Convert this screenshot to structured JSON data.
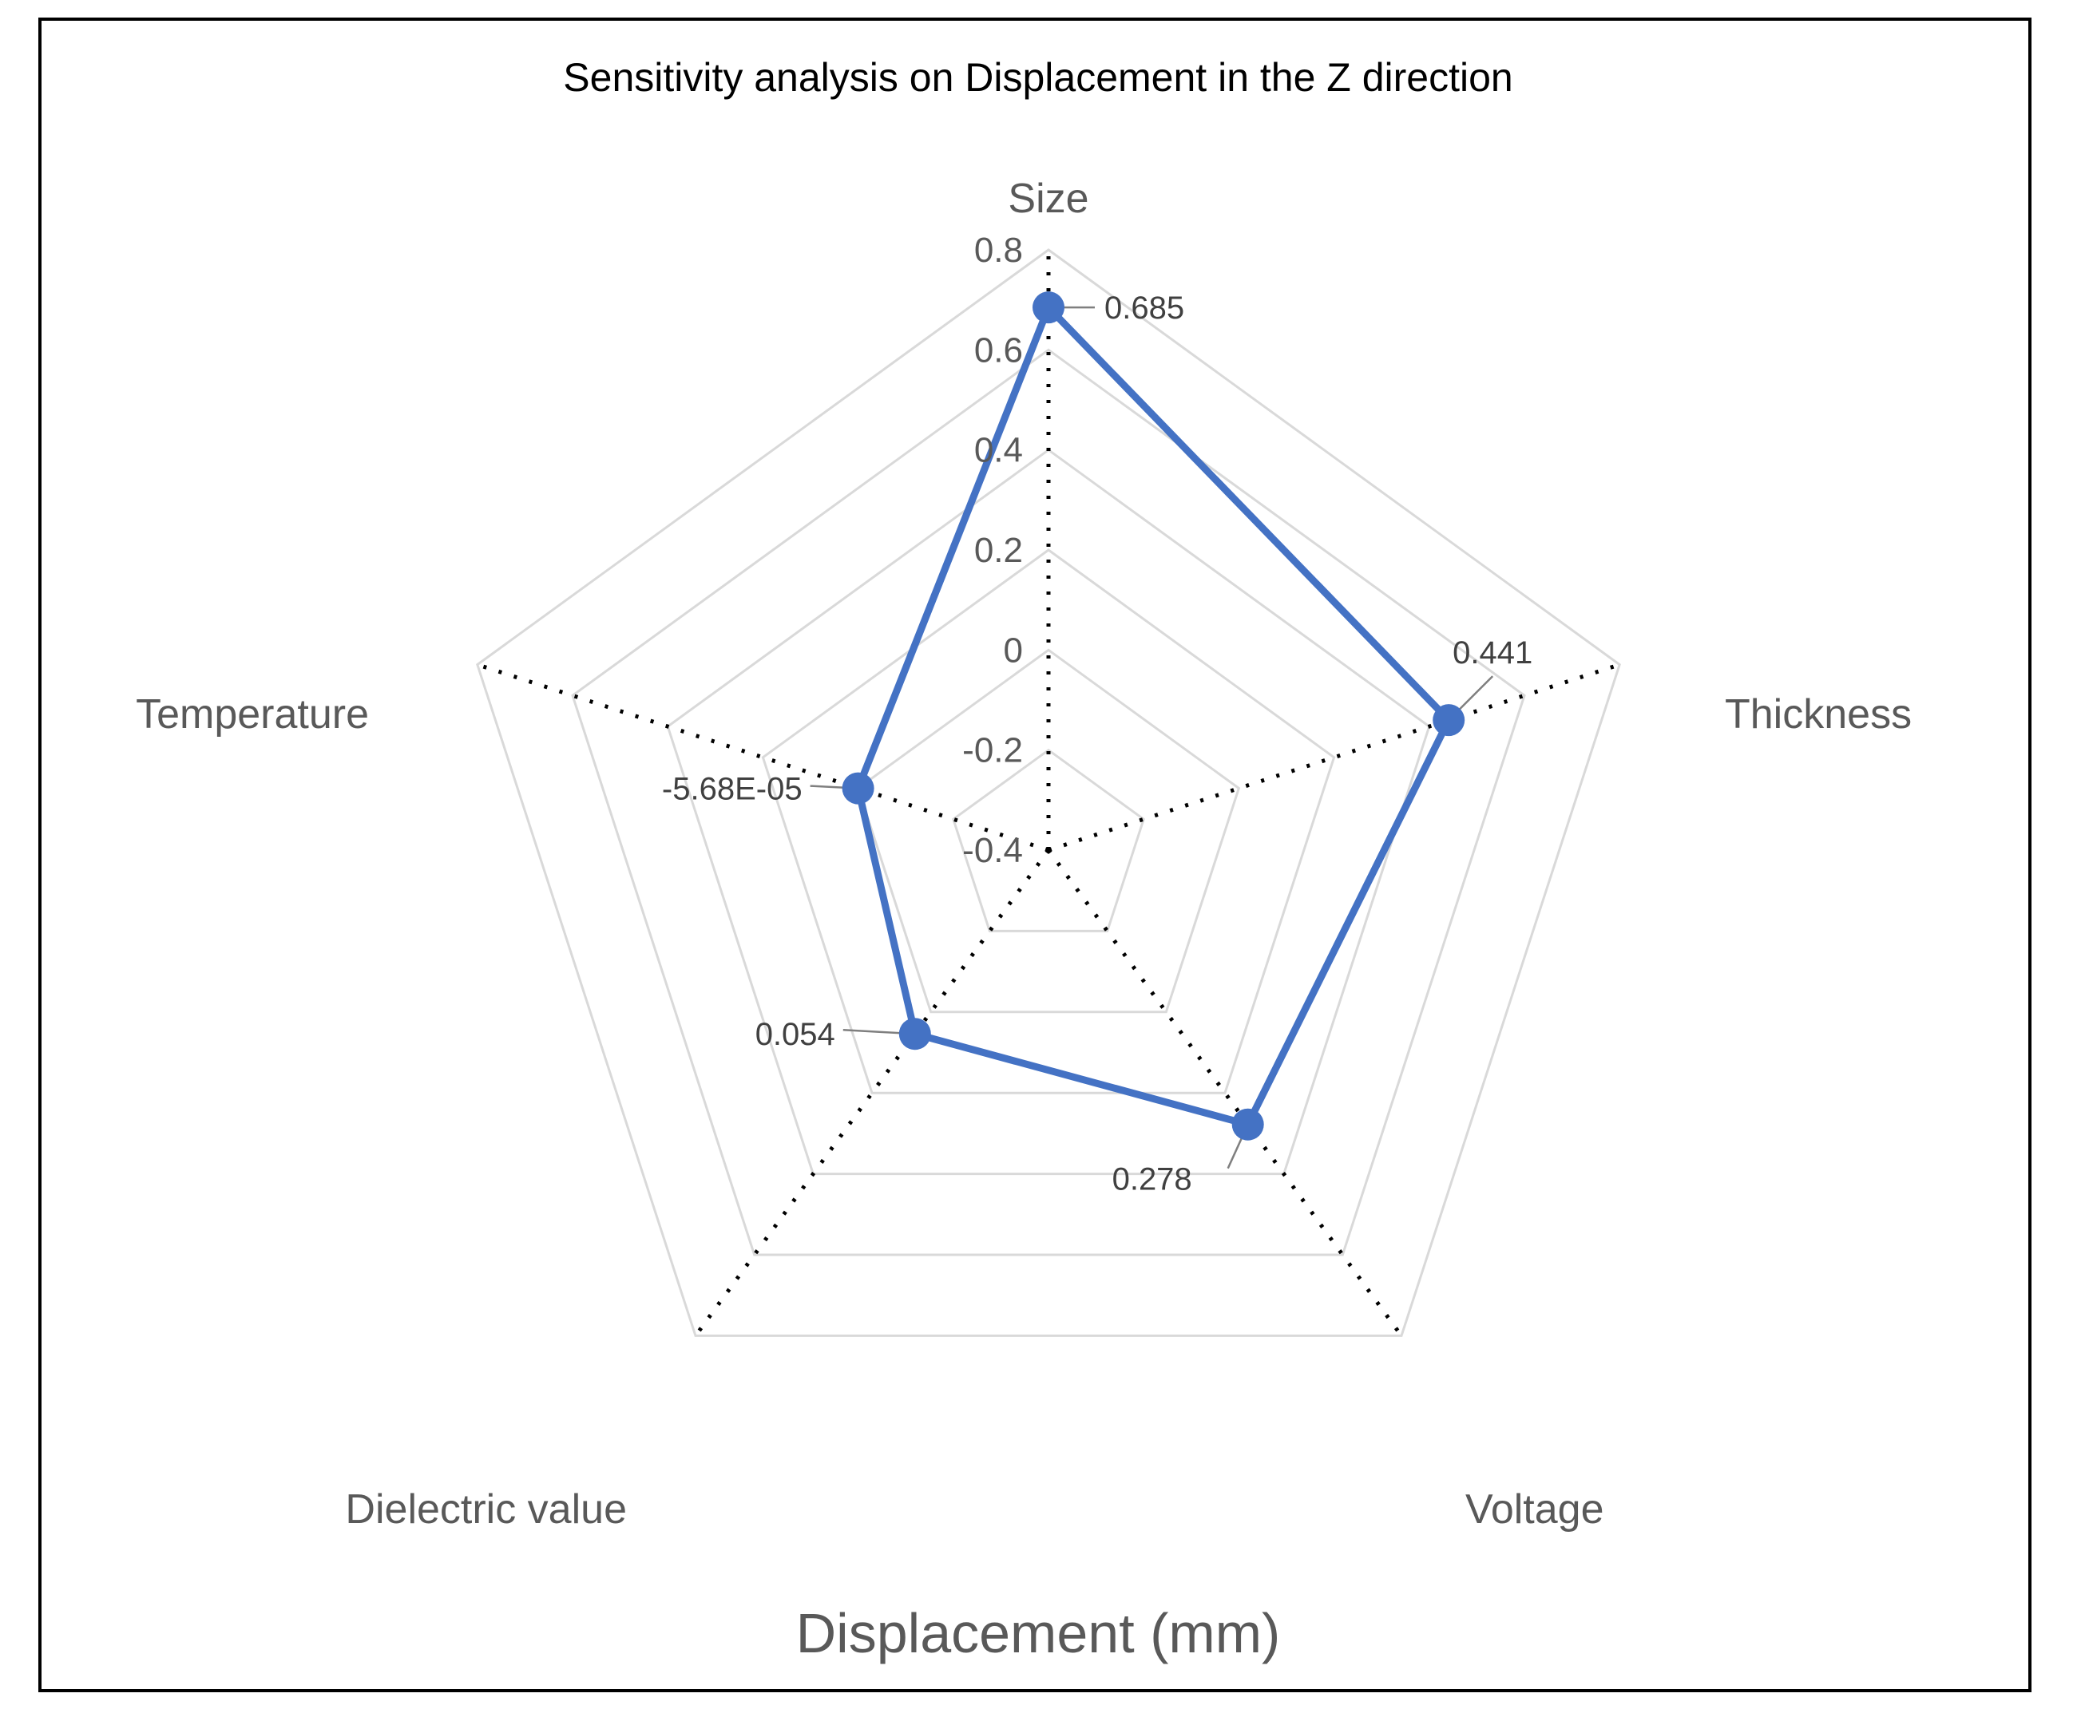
{
  "chart_data": {
    "type": "radar",
    "title": "Sensitivity analysis on Displacement in the Z direction",
    "xlabel": "Displacement (mm)",
    "axes": [
      "Size",
      "Thickness",
      "Voltage",
      "Dielectric value",
      "Temperature"
    ],
    "rlim": [
      -0.4,
      0.8
    ],
    "ticks": [
      -0.4,
      -0.2,
      0,
      0.2,
      0.4,
      0.6,
      0.8
    ],
    "tick_labels": [
      "-0.4",
      "-0.2",
      "0",
      "0.2",
      "0.4",
      "0.6",
      "0.8"
    ],
    "series": [
      {
        "name": "Displacement",
        "values": [
          0.685,
          0.441,
          0.278,
          0.054,
          -5.68e-05
        ],
        "labels": [
          "0.685",
          "0.441",
          "0.278",
          "0.054",
          "-5.68E-05"
        ],
        "color": "#4472C4"
      }
    ],
    "gridline_color": "#D9D9D9",
    "spoke_color": "#000000"
  }
}
